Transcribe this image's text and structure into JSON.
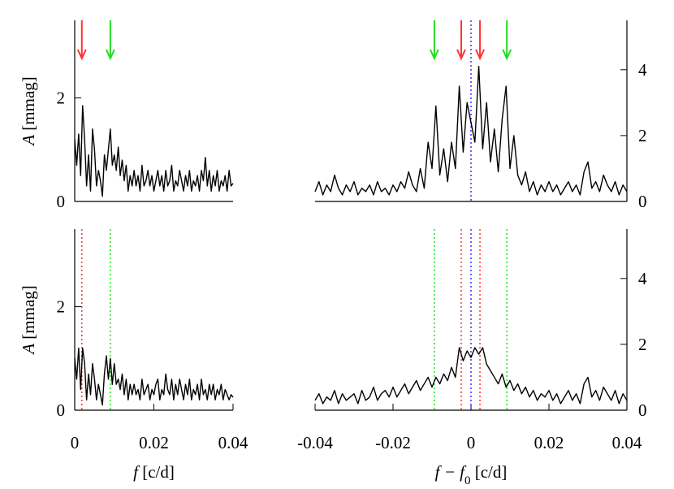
{
  "chart_data": [
    {
      "type": "line",
      "ylabel": [
        "A",
        " [mmag]"
      ],
      "xlim": [
        0,
        0.04
      ],
      "ylim": [
        0,
        3.5
      ],
      "yticks": [
        0,
        2
      ],
      "x": [
        0,
        0.0005,
        0.001,
        0.0015,
        0.002,
        0.0025,
        0.003,
        0.0035,
        0.004,
        0.0045,
        0.005,
        0.0055,
        0.006,
        0.0065,
        0.007,
        0.0075,
        0.008,
        0.0085,
        0.009,
        0.0095,
        0.01,
        0.0105,
        0.011,
        0.0115,
        0.012,
        0.0125,
        0.013,
        0.0135,
        0.014,
        0.0145,
        0.015,
        0.0155,
        0.016,
        0.0165,
        0.017,
        0.0175,
        0.018,
        0.0185,
        0.019,
        0.0195,
        0.02,
        0.0205,
        0.021,
        0.0215,
        0.022,
        0.0225,
        0.023,
        0.0235,
        0.024,
        0.0245,
        0.025,
        0.0255,
        0.026,
        0.0265,
        0.027,
        0.0275,
        0.028,
        0.0285,
        0.029,
        0.0295,
        0.03,
        0.0305,
        0.031,
        0.0315,
        0.032,
        0.0325,
        0.033,
        0.0335,
        0.034,
        0.0345,
        0.035,
        0.0355,
        0.036,
        0.0365,
        0.037,
        0.0375,
        0.038,
        0.0385,
        0.039,
        0.0395,
        0.04
      ],
      "series": [
        {
          "color": "#000000",
          "values": [
            1.2,
            0.7,
            1.3,
            0.5,
            1.85,
            1.2,
            0.3,
            0.9,
            0.2,
            1.4,
            1.0,
            0.3,
            0.6,
            0.4,
            0.1,
            0.9,
            0.6,
            1.0,
            1.4,
            0.7,
            0.9,
            0.6,
            1.05,
            0.5,
            0.8,
            0.4,
            0.7,
            0.2,
            0.5,
            0.3,
            0.6,
            0.3,
            0.5,
            0.2,
            0.7,
            0.3,
            0.4,
            0.6,
            0.3,
            0.5,
            0.2,
            0.4,
            0.6,
            0.3,
            0.5,
            0.2,
            0.6,
            0.3,
            0.4,
            0.7,
            0.2,
            0.4,
            0.3,
            0.6,
            0.4,
            0.2,
            0.5,
            0.3,
            0.6,
            0.2,
            0.4,
            0.3,
            0.5,
            0.2,
            0.6,
            0.4,
            0.85,
            0.3,
            0.6,
            0.2,
            0.5,
            0.3,
            0.6,
            0.2,
            0.4,
            0.3,
            0.5,
            0.2,
            0.6,
            0.3,
            0.35
          ]
        }
      ],
      "markers": [
        {
          "x": 0.0018,
          "color": "#ff3333",
          "style": "arrow"
        },
        {
          "x": 0.009,
          "color": "#22dd22",
          "style": "arrow"
        }
      ]
    },
    {
      "type": "line",
      "xlim": [
        -0.04,
        0.04
      ],
      "y2lim": [
        0,
        5.5
      ],
      "y2ticks": [
        0,
        2,
        4
      ],
      "x": [
        -0.04,
        -0.039,
        -0.038,
        -0.037,
        -0.036,
        -0.035,
        -0.034,
        -0.033,
        -0.032,
        -0.031,
        -0.03,
        -0.029,
        -0.028,
        -0.027,
        -0.026,
        -0.025,
        -0.024,
        -0.023,
        -0.022,
        -0.021,
        -0.02,
        -0.019,
        -0.018,
        -0.017,
        -0.016,
        -0.015,
        -0.014,
        -0.013,
        -0.012,
        -0.011,
        -0.01,
        -0.009,
        -0.008,
        -0.007,
        -0.006,
        -0.005,
        -0.004,
        -0.003,
        -0.002,
        -0.001,
        0,
        0.001,
        0.002,
        0.003,
        0.004,
        0.005,
        0.006,
        0.007,
        0.008,
        0.009,
        0.01,
        0.011,
        0.012,
        0.013,
        0.014,
        0.015,
        0.016,
        0.017,
        0.018,
        0.019,
        0.02,
        0.021,
        0.022,
        0.023,
        0.024,
        0.025,
        0.026,
        0.027,
        0.028,
        0.029,
        0.03,
        0.031,
        0.032,
        0.033,
        0.034,
        0.035,
        0.036,
        0.037,
        0.038,
        0.039,
        0.04
      ],
      "series": [
        {
          "color": "#000000",
          "axis": "y2",
          "values": [
            0.3,
            0.6,
            0.2,
            0.5,
            0.3,
            0.8,
            0.4,
            0.2,
            0.5,
            0.3,
            0.6,
            0.2,
            0.4,
            0.3,
            0.5,
            0.2,
            0.6,
            0.3,
            0.4,
            0.2,
            0.5,
            0.3,
            0.6,
            0.4,
            0.9,
            0.5,
            0.3,
            1.0,
            0.4,
            1.8,
            1.0,
            2.9,
            0.8,
            1.6,
            0.6,
            1.8,
            1.0,
            3.5,
            1.5,
            3.0,
            2.4,
            1.8,
            4.1,
            1.6,
            3.0,
            1.2,
            2.2,
            0.9,
            2.5,
            3.5,
            1.0,
            2.0,
            0.8,
            0.5,
            0.9,
            0.3,
            0.6,
            0.2,
            0.5,
            0.3,
            0.6,
            0.3,
            0.5,
            0.2,
            0.4,
            0.6,
            0.3,
            0.5,
            0.2,
            0.9,
            1.2,
            0.4,
            0.6,
            0.3,
            0.8,
            0.5,
            0.3,
            0.6,
            0.2,
            0.5,
            0.3
          ]
        }
      ],
      "markers": [
        {
          "x": -0.0094,
          "color": "#22dd22",
          "style": "arrow"
        },
        {
          "x": -0.0025,
          "color": "#ff3333",
          "style": "arrow"
        },
        {
          "x": 0,
          "color": "#3333ff",
          "style": "dotted"
        },
        {
          "x": 0.0023,
          "color": "#ff3333",
          "style": "arrow"
        },
        {
          "x": 0.0092,
          "color": "#22dd22",
          "style": "arrow"
        }
      ]
    },
    {
      "type": "line",
      "ylabel": [
        "A",
        " [mmag]"
      ],
      "xlabel": [
        "f",
        " [c/d]"
      ],
      "xlim": [
        0,
        0.04
      ],
      "xticks": [
        0,
        0.02,
        0.04
      ],
      "ylim": [
        0,
        3.5
      ],
      "yticks": [
        0,
        2
      ],
      "x": [
        0,
        0.0005,
        0.001,
        0.0015,
        0.002,
        0.0025,
        0.003,
        0.0035,
        0.004,
        0.0045,
        0.005,
        0.0055,
        0.006,
        0.0065,
        0.007,
        0.0075,
        0.008,
        0.0085,
        0.009,
        0.0095,
        0.01,
        0.0105,
        0.011,
        0.0115,
        0.012,
        0.0125,
        0.013,
        0.0135,
        0.014,
        0.0145,
        0.015,
        0.0155,
        0.016,
        0.0165,
        0.017,
        0.0175,
        0.018,
        0.0185,
        0.019,
        0.0195,
        0.02,
        0.0205,
        0.021,
        0.0215,
        0.022,
        0.0225,
        0.023,
        0.0235,
        0.024,
        0.0245,
        0.025,
        0.0255,
        0.026,
        0.0265,
        0.027,
        0.0275,
        0.028,
        0.0285,
        0.029,
        0.0295,
        0.03,
        0.0305,
        0.031,
        0.0315,
        0.032,
        0.0325,
        0.033,
        0.0335,
        0.034,
        0.0345,
        0.035,
        0.0355,
        0.036,
        0.0365,
        0.037,
        0.0375,
        0.038,
        0.0385,
        0.039,
        0.0395,
        0.04
      ],
      "series": [
        {
          "color": "#000000",
          "values": [
            1.0,
            0.6,
            1.2,
            0.4,
            1.2,
            0.9,
            0.2,
            0.7,
            0.3,
            0.9,
            0.6,
            0.2,
            0.5,
            0.3,
            0.1,
            0.7,
            1.05,
            0.6,
            1.0,
            0.5,
            0.9,
            0.5,
            0.6,
            0.4,
            0.7,
            0.3,
            0.6,
            0.2,
            0.5,
            0.3,
            0.5,
            0.3,
            0.4,
            0.2,
            0.6,
            0.3,
            0.4,
            0.5,
            0.2,
            0.4,
            0.3,
            0.5,
            0.6,
            0.2,
            0.4,
            0.3,
            0.7,
            0.4,
            0.3,
            0.6,
            0.2,
            0.5,
            0.3,
            0.6,
            0.4,
            0.2,
            0.5,
            0.3,
            0.6,
            0.2,
            0.4,
            0.3,
            0.5,
            0.2,
            0.6,
            0.3,
            0.4,
            0.2,
            0.5,
            0.3,
            0.5,
            0.2,
            0.4,
            0.3,
            0.5,
            0.2,
            0.4,
            0.3,
            0.2,
            0.3,
            0.25
          ]
        }
      ],
      "markers": [
        {
          "x": 0.0018,
          "color": "#ff3333",
          "style": "dotted"
        },
        {
          "x": 0.009,
          "color": "#22dd22",
          "style": "dotted"
        }
      ]
    },
    {
      "type": "line",
      "xlabel": [
        "f − f",
        "0",
        " [c/d]"
      ],
      "xlim": [
        -0.04,
        0.04
      ],
      "xticks": [
        -0.04,
        -0.02,
        0,
        0.02,
        0.04
      ],
      "y2lim": [
        0,
        5.5
      ],
      "y2ticks": [
        0,
        2,
        4
      ],
      "x": [
        -0.04,
        -0.039,
        -0.038,
        -0.037,
        -0.036,
        -0.035,
        -0.034,
        -0.033,
        -0.032,
        -0.031,
        -0.03,
        -0.029,
        -0.028,
        -0.027,
        -0.026,
        -0.025,
        -0.024,
        -0.023,
        -0.022,
        -0.021,
        -0.02,
        -0.019,
        -0.018,
        -0.017,
        -0.016,
        -0.015,
        -0.014,
        -0.013,
        -0.012,
        -0.011,
        -0.01,
        -0.009,
        -0.008,
        -0.007,
        -0.006,
        -0.005,
        -0.004,
        -0.003,
        -0.002,
        -0.001,
        0,
        0.001,
        0.002,
        0.003,
        0.004,
        0.005,
        0.006,
        0.007,
        0.008,
        0.009,
        0.01,
        0.011,
        0.012,
        0.013,
        0.014,
        0.015,
        0.016,
        0.017,
        0.018,
        0.019,
        0.02,
        0.021,
        0.022,
        0.023,
        0.024,
        0.025,
        0.026,
        0.027,
        0.028,
        0.029,
        0.03,
        0.031,
        0.032,
        0.033,
        0.034,
        0.035,
        0.036,
        0.037,
        0.038,
        0.039,
        0.04
      ],
      "series": [
        {
          "color": "#000000",
          "axis": "y2",
          "values": [
            0.3,
            0.5,
            0.2,
            0.4,
            0.3,
            0.6,
            0.2,
            0.5,
            0.3,
            0.4,
            0.5,
            0.2,
            0.6,
            0.3,
            0.4,
            0.7,
            0.3,
            0.5,
            0.6,
            0.4,
            0.7,
            0.4,
            0.6,
            0.8,
            0.5,
            0.7,
            0.9,
            0.6,
            0.8,
            1.0,
            0.7,
            1.0,
            0.8,
            1.1,
            0.9,
            1.3,
            1.0,
            1.9,
            1.5,
            1.8,
            1.6,
            1.9,
            1.7,
            1.9,
            1.4,
            1.2,
            1.0,
            0.8,
            1.1,
            0.7,
            0.9,
            0.6,
            0.8,
            0.5,
            0.7,
            0.4,
            0.6,
            0.3,
            0.5,
            0.4,
            0.6,
            0.3,
            0.5,
            0.2,
            0.4,
            0.6,
            0.3,
            0.5,
            0.2,
            0.8,
            1.0,
            0.4,
            0.6,
            0.3,
            0.7,
            0.5,
            0.3,
            0.6,
            0.2,
            0.5,
            0.3
          ]
        }
      ],
      "markers": [
        {
          "x": -0.0094,
          "color": "#22dd22",
          "style": "dotted"
        },
        {
          "x": -0.0025,
          "color": "#ff3333",
          "style": "dotted"
        },
        {
          "x": 0,
          "color": "#3333ff",
          "style": "dotted"
        },
        {
          "x": 0.0023,
          "color": "#ff3333",
          "style": "dotted"
        },
        {
          "x": 0.0092,
          "color": "#22dd22",
          "style": "dotted"
        }
      ]
    }
  ]
}
